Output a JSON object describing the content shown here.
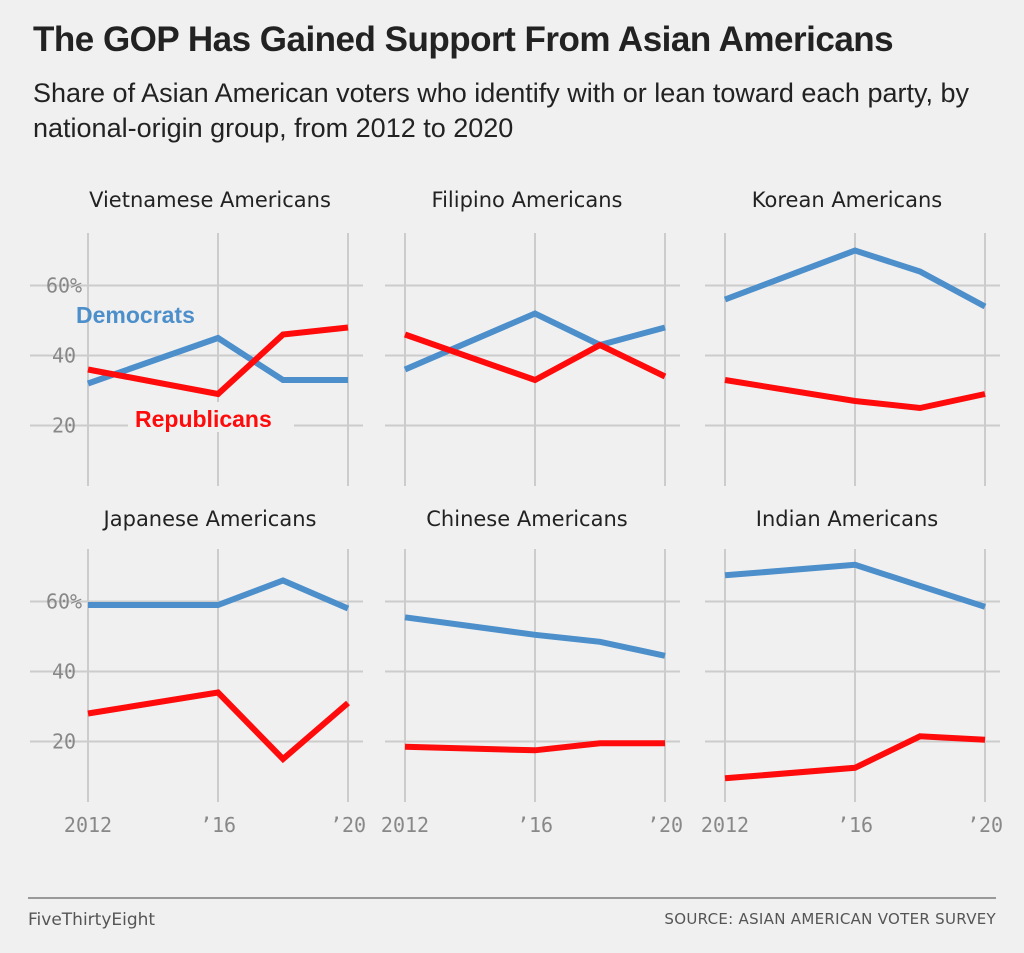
{
  "header": {
    "title": "The GOP Has Gained Support From Asian Americans",
    "subtitle": "Share of Asian American voters who identify with or lean toward each party, by national-origin group, from 2012 to 2020"
  },
  "colors": {
    "democrats": "#4c8fcb",
    "republicans": "#ff0b0b",
    "grid": "#cccccc",
    "tick_text": "#888888"
  },
  "series_labels": {
    "democrats": "Democrats",
    "republicans": "Republicans"
  },
  "chart_data": [
    {
      "type": "line",
      "title": "Vietnamese Americans",
      "x": [
        2012,
        2016,
        2018,
        2020
      ],
      "x_tick_labels": [
        "2012",
        "’16",
        "’20"
      ],
      "y_tick_labels": [
        "60%",
        "40",
        "20"
      ],
      "ylim": [
        5,
        75
      ],
      "grid": true,
      "series": [
        {
          "name": "Democrats",
          "values": [
            32,
            45,
            33,
            33
          ]
        },
        {
          "name": "Republicans",
          "values": [
            36,
            29,
            46,
            48
          ]
        }
      ]
    },
    {
      "type": "line",
      "title": "Filipino Americans",
      "x": [
        2012,
        2016,
        2018,
        2020
      ],
      "x_tick_labels": [
        "2012",
        "’16",
        "’20"
      ],
      "y_tick_labels": [
        "60%",
        "40",
        "20"
      ],
      "ylim": [
        5,
        75
      ],
      "grid": true,
      "series": [
        {
          "name": "Democrats",
          "values": [
            36,
            52,
            43,
            48
          ]
        },
        {
          "name": "Republicans",
          "values": [
            46,
            33,
            43,
            34
          ]
        }
      ]
    },
    {
      "type": "line",
      "title": "Korean Americans",
      "x": [
        2012,
        2016,
        2018,
        2020
      ],
      "x_tick_labels": [
        "2012",
        "’16",
        "’20"
      ],
      "y_tick_labels": [
        "60%",
        "40",
        "20"
      ],
      "ylim": [
        5,
        75
      ],
      "grid": true,
      "series": [
        {
          "name": "Democrats",
          "values": [
            56,
            70,
            64,
            54
          ]
        },
        {
          "name": "Republicans",
          "values": [
            33,
            27,
            25,
            29
          ]
        }
      ]
    },
    {
      "type": "line",
      "title": "Japanese Americans",
      "x": [
        2012,
        2016,
        2018,
        2020
      ],
      "x_tick_labels": [
        "2012",
        "’16",
        "’20"
      ],
      "y_tick_labels": [
        "60%",
        "40",
        "20"
      ],
      "ylim": [
        5,
        75
      ],
      "grid": true,
      "series": [
        {
          "name": "Democrats",
          "values": [
            59,
            59,
            66,
            58
          ]
        },
        {
          "name": "Republicans",
          "values": [
            28,
            34,
            15,
            31
          ]
        }
      ]
    },
    {
      "type": "line",
      "title": "Chinese Americans",
      "x": [
        2012,
        2016,
        2018,
        2020
      ],
      "x_tick_labels": [
        "2012",
        "’16",
        "’20"
      ],
      "y_tick_labels": [
        "60%",
        "40",
        "20"
      ],
      "ylim": [
        5,
        75
      ],
      "grid": true,
      "series": [
        {
          "name": "Democrats",
          "values": [
            55.5,
            50.5,
            48.5,
            44.5
          ]
        },
        {
          "name": "Republicans",
          "values": [
            18.5,
            17.5,
            19.5,
            19.5
          ]
        }
      ]
    },
    {
      "type": "line",
      "title": "Indian Americans",
      "x": [
        2012,
        2016,
        2018,
        2020
      ],
      "x_tick_labels": [
        "2012",
        "’16",
        "’20"
      ],
      "y_tick_labels": [
        "60%",
        "40",
        "20"
      ],
      "ylim": [
        5,
        75
      ],
      "grid": true,
      "series": [
        {
          "name": "Democrats",
          "values": [
            67.5,
            70.5,
            64.5,
            58.5
          ]
        },
        {
          "name": "Republicans",
          "values": [
            9.5,
            12.5,
            21.5,
            20.5
          ]
        }
      ]
    }
  ],
  "footer": {
    "brand": "FiveThirtyEight",
    "source": "SOURCE: ASIAN AMERICAN VOTER SURVEY"
  }
}
